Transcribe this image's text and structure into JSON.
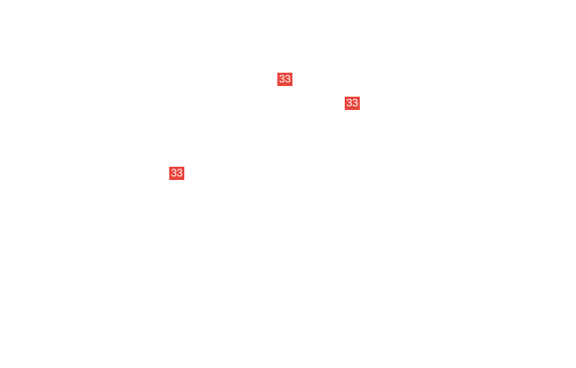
{
  "badge_color": "#e8453c",
  "markers": [
    {
      "label": "33"
    },
    {
      "label": "33"
    },
    {
      "label": "33"
    }
  ]
}
